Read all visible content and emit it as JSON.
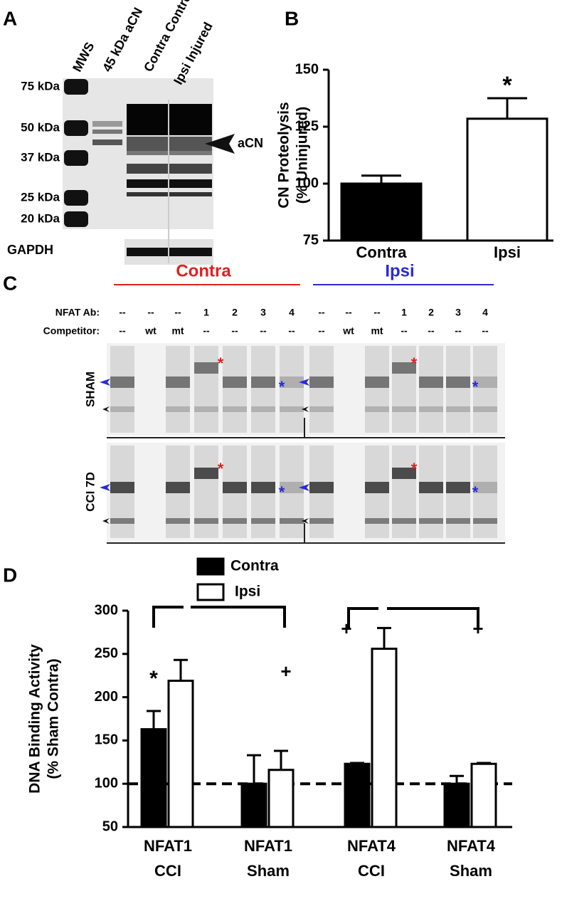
{
  "panel_labels": [
    "A",
    "B",
    "C",
    "D"
  ],
  "blot": {
    "lanes": [
      "MWS",
      "45 kDa aCN",
      "Contra Control",
      "Ipsi Injured"
    ],
    "markers": [
      "75 kDa",
      "50 kDa",
      "37 kDa",
      "25 kDa",
      "20 kDa"
    ],
    "arrow_label": "aCN",
    "loading_control": "GAPDH"
  },
  "emsa": {
    "groups": [
      {
        "name": "Contra",
        "color": "#e02020"
      },
      {
        "name": "Ipsi",
        "color": "#2a2ad8"
      }
    ],
    "row_labels": [
      "NFAT Ab:",
      "Competitor:"
    ],
    "nfat_ab": [
      "--",
      "--",
      "--",
      "1",
      "2",
      "3",
      "4"
    ],
    "competitor": [
      "--",
      "wt",
      "mt",
      "--",
      "--",
      "--",
      "--"
    ],
    "conditions": [
      "SHAM",
      "CCI 7D"
    ],
    "marker": "*"
  },
  "chart_data": [
    {
      "type": "bar",
      "y_label": [
        "CN Proteolysis",
        "(% Uninjured)"
      ],
      "categories": [
        "Contra",
        "Ipsi"
      ],
      "values": [
        100,
        128.5
      ],
      "errors": [
        3.5,
        9
      ],
      "colors": [
        "#000000",
        "#ffffff"
      ],
      "ylim": [
        75,
        150
      ],
      "yticks": [
        75,
        100,
        125,
        150
      ],
      "annotations": [
        "*"
      ]
    },
    {
      "type": "grouped_bar",
      "y_label": [
        "DNA Binding Activity",
        "(% Sham Contra)"
      ],
      "categories": [
        [
          "NFAT1",
          "CCI"
        ],
        [
          "NFAT1",
          "Sham"
        ],
        [
          "NFAT4",
          "CCI"
        ],
        [
          "NFAT4",
          "Sham"
        ]
      ],
      "series": [
        {
          "name": "Contra",
          "color": "#000000",
          "values": [
            163,
            100,
            123,
            100
          ],
          "errors": [
            21,
            33,
            1,
            9
          ]
        },
        {
          "name": "Ipsi",
          "color": "#ffffff",
          "values": [
            219,
            116,
            256,
            123
          ],
          "errors": [
            24,
            22,
            24,
            1
          ]
        }
      ],
      "ylim": [
        50,
        300
      ],
      "yticks": [
        50,
        100,
        150,
        200,
        250,
        300
      ],
      "reference_line": 100,
      "annotations": [
        "*",
        "+",
        "+",
        "+"
      ]
    }
  ]
}
